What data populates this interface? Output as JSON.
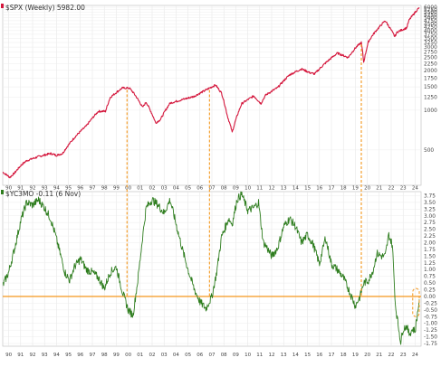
{
  "chart_data": [
    {
      "type": "line",
      "legend_text": "$SPX (Weekly) 5982.00",
      "series": [
        {
          "name": "$SPX (Weekly)",
          "color": "#d4163c",
          "points": [
            [
              1990.0,
              340
            ],
            [
              1990.6,
              310
            ],
            [
              1991.0,
              335
            ],
            [
              1991.5,
              380
            ],
            [
              1992.0,
              415
            ],
            [
              1993.0,
              445
            ],
            [
              1994.0,
              470
            ],
            [
              1994.5,
              455
            ],
            [
              1995.0,
              470
            ],
            [
              1996.0,
              620
            ],
            [
              1997.0,
              760
            ],
            [
              1998.0,
              980
            ],
            [
              1998.6,
              980
            ],
            [
              1999.0,
              1250
            ],
            [
              2000.0,
              1470
            ],
            [
              2000.6,
              1470
            ],
            [
              2001.0,
              1330
            ],
            [
              2001.7,
              1050
            ],
            [
              2002.0,
              1150
            ],
            [
              2002.8,
              800
            ],
            [
              2003.2,
              850
            ],
            [
              2004.0,
              1130
            ],
            [
              2005.0,
              1200
            ],
            [
              2006.0,
              1270
            ],
            [
              2007.0,
              1420
            ],
            [
              2007.8,
              1550
            ],
            [
              2008.3,
              1350
            ],
            [
              2008.8,
              900
            ],
            [
              2009.2,
              680
            ],
            [
              2010.0,
              1120
            ],
            [
              2011.0,
              1280
            ],
            [
              2011.6,
              1120
            ],
            [
              2012.0,
              1300
            ],
            [
              2013.0,
              1480
            ],
            [
              2014.0,
              1850
            ],
            [
              2015.0,
              2050
            ],
            [
              2015.7,
              1920
            ],
            [
              2016.1,
              1880
            ],
            [
              2017.0,
              2270
            ],
            [
              2018.0,
              2700
            ],
            [
              2018.9,
              2500
            ],
            [
              2019.5,
              2950
            ],
            [
              2020.0,
              3250
            ],
            [
              2020.2,
              2300
            ],
            [
              2020.6,
              3300
            ],
            [
              2021.0,
              3750
            ],
            [
              2022.0,
              4750
            ],
            [
              2022.8,
              3600
            ],
            [
              2023.0,
              3900
            ],
            [
              2023.8,
              4200
            ],
            [
              2024.0,
              4800
            ],
            [
              2024.5,
              5500
            ],
            [
              2024.85,
              5982
            ]
          ]
        }
      ],
      "y_ticks": [
        500,
        1000,
        1250,
        1500,
        1750,
        2000,
        2250,
        2500,
        2750,
        3000,
        3250,
        3500,
        3750,
        4000,
        4250,
        4500,
        4750,
        5000,
        5250,
        5500,
        5750,
        6000
      ],
      "y_scale": "log",
      "grid": true
    },
    {
      "type": "line",
      "legend_text": "$YC3MO -0.11 (6 Nov)",
      "series": [
        {
          "name": "$YC3MO",
          "color": "#2e7d1e",
          "points": [
            [
              1990.0,
              0.4
            ],
            [
              1990.5,
              0.9
            ],
            [
              1991.0,
              1.8
            ],
            [
              1991.5,
              2.8
            ],
            [
              1992.0,
              3.5
            ],
            [
              1992.5,
              3.4
            ],
            [
              1993.0,
              3.6
            ],
            [
              1993.5,
              3.3
            ],
            [
              1994.0,
              2.9
            ],
            [
              1994.4,
              2.3
            ],
            [
              1994.8,
              1.6
            ],
            [
              1995.2,
              0.9
            ],
            [
              1995.6,
              0.6
            ],
            [
              1996.0,
              1.1
            ],
            [
              1996.5,
              1.4
            ],
            [
              1997.0,
              1.0
            ],
            [
              1997.5,
              0.9
            ],
            [
              1998.0,
              0.7
            ],
            [
              1998.5,
              0.3
            ],
            [
              1999.0,
              0.9
            ],
            [
              1999.5,
              1.1
            ],
            [
              2000.0,
              0.2
            ],
            [
              2000.5,
              -0.5
            ],
            [
              2000.9,
              -0.7
            ],
            [
              2001.3,
              0.6
            ],
            [
              2001.7,
              2.2
            ],
            [
              2002.0,
              3.3
            ],
            [
              2002.5,
              3.6
            ],
            [
              2003.0,
              3.4
            ],
            [
              2003.5,
              3.1
            ],
            [
              2004.0,
              3.6
            ],
            [
              2004.5,
              2.7
            ],
            [
              2005.0,
              1.8
            ],
            [
              2005.5,
              1.0
            ],
            [
              2006.0,
              0.3
            ],
            [
              2006.5,
              -0.2
            ],
            [
              2007.0,
              -0.45
            ],
            [
              2007.5,
              0.0
            ],
            [
              2007.9,
              0.9
            ],
            [
              2008.3,
              2.2
            ],
            [
              2008.9,
              2.9
            ],
            [
              2009.2,
              2.7
            ],
            [
              2009.6,
              3.6
            ],
            [
              2010.0,
              3.8
            ],
            [
              2010.5,
              3.2
            ],
            [
              2011.0,
              3.3
            ],
            [
              2011.4,
              3.5
            ],
            [
              2011.8,
              2.0
            ],
            [
              2012.0,
              1.9
            ],
            [
              2012.5,
              1.5
            ],
            [
              2013.0,
              1.8
            ],
            [
              2013.5,
              2.6
            ],
            [
              2014.0,
              2.9
            ],
            [
              2014.5,
              2.6
            ],
            [
              2015.0,
              2.0
            ],
            [
              2015.5,
              2.3
            ],
            [
              2016.0,
              1.9
            ],
            [
              2016.5,
              1.2
            ],
            [
              2017.0,
              2.2
            ],
            [
              2017.5,
              1.2
            ],
            [
              2018.0,
              1.0
            ],
            [
              2018.5,
              0.7
            ],
            [
              2019.0,
              0.2
            ],
            [
              2019.5,
              -0.35
            ],
            [
              2019.9,
              0.0
            ],
            [
              2020.2,
              0.5
            ],
            [
              2020.6,
              0.6
            ],
            [
              2021.0,
              1.0
            ],
            [
              2021.3,
              1.6
            ],
            [
              2021.7,
              1.5
            ],
            [
              2022.0,
              1.5
            ],
            [
              2022.3,
              2.3
            ],
            [
              2022.6,
              1.9
            ],
            [
              2022.85,
              -0.3
            ],
            [
              2023.0,
              -0.8
            ],
            [
              2023.3,
              -1.7
            ],
            [
              2023.5,
              -1.2
            ],
            [
              2023.8,
              -1.1
            ],
            [
              2024.0,
              -1.4
            ],
            [
              2024.3,
              -1.2
            ],
            [
              2024.5,
              -1.3
            ],
            [
              2024.85,
              -0.11
            ]
          ]
        }
      ],
      "y_ticks": [
        -1.75,
        -1.5,
        -1.25,
        -1.0,
        -0.75,
        -0.5,
        -0.25,
        0.0,
        0.25,
        0.5,
        0.75,
        1.0,
        1.25,
        1.5,
        1.75,
        2.0,
        2.25,
        2.5,
        2.75,
        3.0,
        3.25,
        3.5,
        3.75
      ],
      "reference_line": 0.0,
      "grid": true
    }
  ],
  "x_ticks": [
    "90",
    "91",
    "92",
    "93",
    "94",
    "95",
    "96",
    "97",
    "98",
    "99",
    "00",
    "01",
    "02",
    "03",
    "04",
    "05",
    "06",
    "07",
    "08",
    "09",
    "10",
    "11",
    "12",
    "13",
    "14",
    "15",
    "16",
    "17",
    "18",
    "19",
    "20",
    "21",
    "22",
    "23",
    "24"
  ],
  "x_range": [
    1990,
    2025
  ],
  "annotations": {
    "vertical_marker_years": [
      2000.4,
      2007.3,
      2020.0
    ],
    "marker_color": "#f5a030"
  }
}
